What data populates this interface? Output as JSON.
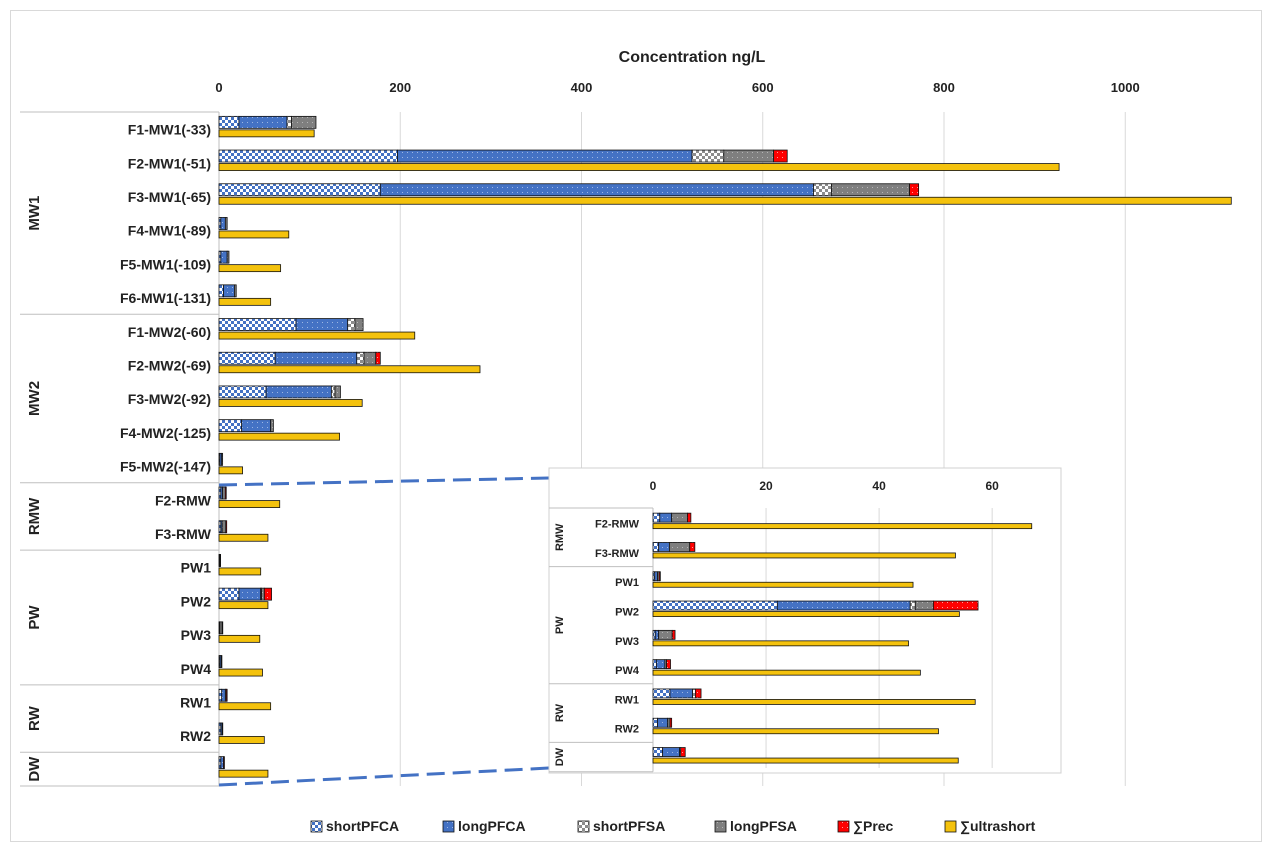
{
  "chart_data": {
    "type": "bar",
    "orientation": "horizontal",
    "stacked": true,
    "title": "Concentration ng/L",
    "xlim": [
      0,
      1120
    ],
    "xticks": [
      0,
      200,
      400,
      600,
      800,
      1000
    ],
    "grid": true,
    "legend_position": "bottom",
    "series_styles": {
      "shortPFCA": {
        "color": "#4472c4",
        "pattern": "checker-blue"
      },
      "longPFCA": {
        "color": "#4472c4",
        "pattern": "dotted-blue"
      },
      "shortPFSA": {
        "color": "#a6a6a6",
        "pattern": "checker-gray"
      },
      "longPFSA": {
        "color": "#808080",
        "pattern": "dotted-gray"
      },
      "∑Prec": {
        "color": "#ff0000",
        "pattern": "dotted-red"
      },
      "∑ultrashort": {
        "color": "#f4c20d",
        "pattern": "solid"
      }
    },
    "legend": [
      "shortPFCA",
      "longPFCA",
      "shortPFSA",
      "longPFSA",
      "∑Prec",
      "∑ultrashort"
    ],
    "groups": [
      {
        "name": "MW1",
        "categories": [
          {
            "label": "F1-MW1(-33)",
            "stack": [
              22,
              53,
              5,
              27,
              0
            ],
            "ultrashort": 105
          },
          {
            "label": "F2-MW1(-51)",
            "stack": [
              197,
              325,
              35,
              55,
              15
            ],
            "ultrashort": 927
          },
          {
            "label": "F3-MW1(-65)",
            "stack": [
              178,
              478,
              20,
              86,
              10
            ],
            "ultrashort": 1117
          },
          {
            "label": "F4-MW1(-89)",
            "stack": [
              2,
              5,
              0,
              2,
              0
            ],
            "ultrashort": 77
          },
          {
            "label": "F5-MW1(-109)",
            "stack": [
              2,
              7,
              0,
              2,
              0
            ],
            "ultrashort": 68
          },
          {
            "label": "F6-MW1(-131)",
            "stack": [
              5,
              12,
              0,
              2,
              0
            ],
            "ultrashort": 57
          }
        ]
      },
      {
        "name": "MW2",
        "categories": [
          {
            "label": "F1-MW2(-60)",
            "stack": [
              85,
              57,
              8,
              9,
              0
            ],
            "ultrashort": 216
          },
          {
            "label": "F2-MW2(-69)",
            "stack": [
              62,
              90,
              8,
              13,
              5
            ],
            "ultrashort": 288
          },
          {
            "label": "F3-MW2(-92)",
            "stack": [
              52,
              72,
              4,
              6,
              0
            ],
            "ultrashort": 158
          },
          {
            "label": "F4-MW2(-125)",
            "stack": [
              25,
              32,
              0,
              3,
              0
            ],
            "ultrashort": 133
          },
          {
            "label": "F5-MW2(-147)",
            "stack": [
              1,
              2,
              0,
              1,
              0
            ],
            "ultrashort": 26
          }
        ]
      },
      {
        "name": "RMW",
        "categories": [
          {
            "label": "F2-RMW",
            "stack": [
              2,
              2,
              0,
              3,
              1
            ],
            "ultrashort": 67
          },
          {
            "label": "F3-RMW",
            "stack": [
              2,
              1.5,
              0,
              4,
              1
            ],
            "ultrashort": 54
          }
        ]
      },
      {
        "name": "PW",
        "categories": [
          {
            "label": "PW1",
            "stack": [
              0.3,
              0.5,
              0,
              0.3,
              0.2
            ],
            "ultrashort": 46
          },
          {
            "label": "PW2",
            "stack": [
              22,
              24,
              1,
              3,
              8
            ],
            "ultrashort": 54
          },
          {
            "label": "PW3",
            "stack": [
              0.5,
              0.5,
              0,
              2.5,
              0.5
            ],
            "ultrashort": 45
          },
          {
            "label": "PW4",
            "stack": [
              1,
              1.5,
              0,
              0,
              0.7
            ],
            "ultrashort": 48
          }
        ]
      },
      {
        "name": "RW",
        "categories": [
          {
            "label": "RW1",
            "stack": [
              3,
              4,
              0,
              1,
              1
            ],
            "ultrashort": 57
          },
          {
            "label": "RW2",
            "stack": [
              2,
              1.5,
              0,
              0,
              0.5
            ],
            "ultrashort": 50
          }
        ]
      },
      {
        "name": "DW",
        "categories": [
          {
            "label": "",
            "stack": [
              2,
              3,
              0,
              0,
              1
            ],
            "ultrashort": 54
          }
        ]
      }
    ],
    "inset": {
      "xlim": [
        0,
        72
      ],
      "xticks": [
        0,
        20,
        40,
        60
      ],
      "groups": [
        {
          "name": "RMW",
          "categories": [
            {
              "label": "F2-RMW",
              "stack": [
                1.2,
                2.1,
                0,
                2.8,
                0.6
              ],
              "ultrashort": 67
            },
            {
              "label": "F3-RMW",
              "stack": [
                1.0,
                1.9,
                0,
                3.6,
                0.9
              ],
              "ultrashort": 53.5
            }
          ]
        },
        {
          "name": "PW",
          "categories": [
            {
              "label": "PW1",
              "stack": [
                0.3,
                0.5,
                0,
                0.3,
                0.2
              ],
              "ultrashort": 46
            },
            {
              "label": "PW2",
              "stack": [
                22,
                23.5,
                0.9,
                3.2,
                7.9
              ],
              "ultrashort": 54.2
            },
            {
              "label": "PW3",
              "stack": [
                0.4,
                0.6,
                0,
                2.4,
                0.5
              ],
              "ultrashort": 45.2
            },
            {
              "label": "PW4",
              "stack": [
                0.6,
                1.5,
                0,
                0.3,
                0.7
              ],
              "ultrashort": 47.3
            }
          ]
        },
        {
          "name": "RW",
          "categories": [
            {
              "label": "RW1",
              "stack": [
                3,
                4,
                0.5,
                0,
                1
              ],
              "ultrashort": 57
            },
            {
              "label": "RW2",
              "stack": [
                0.8,
                1.8,
                0,
                0.4,
                0.3
              ],
              "ultrashort": 50.5
            }
          ]
        },
        {
          "name": "DW",
          "categories": [
            {
              "label": "",
              "stack": [
                1.7,
                3.0,
                0.2,
                0,
                0.8
              ],
              "ultrashort": 54
            }
          ]
        }
      ]
    }
  }
}
